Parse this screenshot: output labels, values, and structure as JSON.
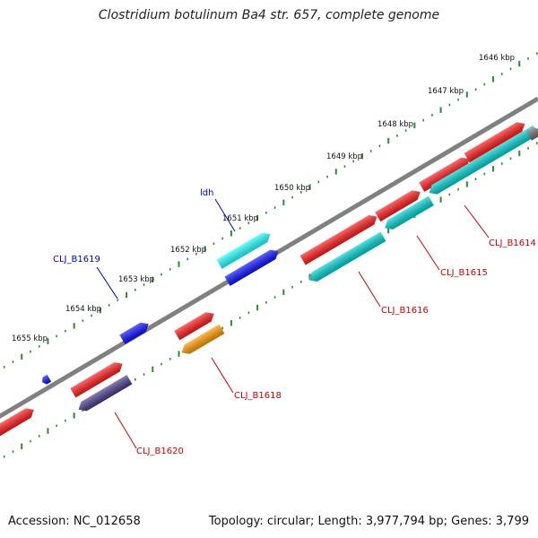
{
  "title": "Clostridium botulinum Ba4 str. 657, complete genome",
  "footer": {
    "accession": "Accession: NC_012658",
    "topology": "Topology: circular; Length: 3,977,794 bp; Genes: 3,799"
  },
  "colors": {
    "backbone": "#808080",
    "ticks": "#2e8b2e",
    "red_gene": "#ff1a1a",
    "cyan_gene": "#00cfcf",
    "bright_cyan_gene": "#22ffff",
    "blue_gene": "#0a10ff",
    "orange_gene": "#ff9900",
    "navy_gene": "#4a3a8a",
    "label_red": "#cc0000",
    "label_blue": "#0000cc"
  },
  "kbp_ticks": [
    "1646 kbp",
    "1647 kbp",
    "1648 kbp",
    "1649 kbp",
    "1650 kbp",
    "1651 kbp",
    "1652 kbp",
    "1653 kbp",
    "1654 kbp",
    "1655 kbp"
  ],
  "gene_labels": [
    {
      "text": "CLJ_B1614",
      "color": "red"
    },
    {
      "text": "CLJ_B1615",
      "color": "red"
    },
    {
      "text": "CLJ_B1616",
      "color": "red"
    },
    {
      "text": "CLJ_B1618",
      "color": "red"
    },
    {
      "text": "CLJ_B1620",
      "color": "red"
    },
    {
      "text": "ldh",
      "color": "blue"
    },
    {
      "text": "CLJ_B1619",
      "color": "blue"
    }
  ]
}
